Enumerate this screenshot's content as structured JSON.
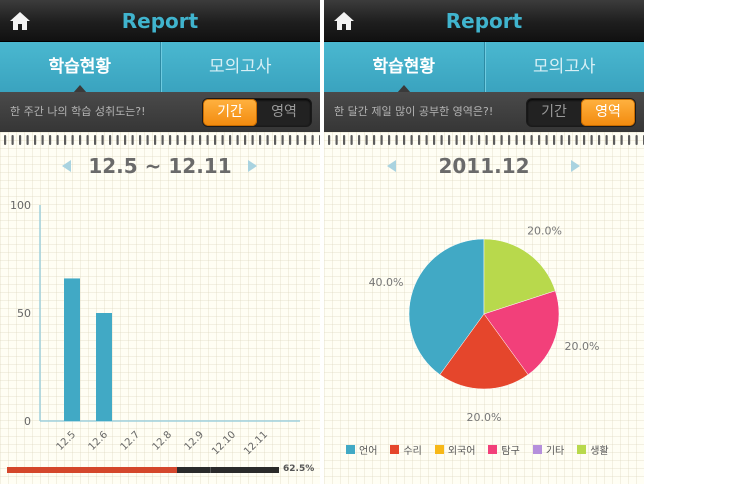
{
  "screens": [
    {
      "header": {
        "title": "Report"
      },
      "tabs": [
        {
          "label": "학습현황"
        },
        {
          "label": "모의고사"
        }
      ],
      "subbar": {
        "question": "한 주간 나의 학습 성취도는?!",
        "segments": [
          {
            "label": "기간"
          },
          {
            "label": "영역"
          }
        ],
        "selected": 0
      },
      "period": "12.5 ~ 12.11",
      "progress": {
        "label": "62.5%",
        "value": 0.625
      }
    },
    {
      "header": {
        "title": "Report"
      },
      "tabs": [
        {
          "label": "학습현황"
        },
        {
          "label": "모의고사"
        }
      ],
      "subbar": {
        "question": "한 달간 제일 많이 공부한 영역은?!",
        "segments": [
          {
            "label": "기간"
          },
          {
            "label": "영역"
          }
        ],
        "selected": 1
      },
      "period": "2011.12"
    }
  ],
  "colors": {
    "bar": "#41a9c5",
    "axis": "#9fd0dd",
    "accent_orange": "#f5941a"
  },
  "icons": {
    "home": "home-icon",
    "prev": "arrow-left-icon",
    "next": "arrow-right-icon"
  },
  "chart_data": [
    {
      "type": "bar",
      "categories": [
        "12.5",
        "12.6",
        "12.7",
        "12.8",
        "12.9",
        "12.10",
        "12.11"
      ],
      "values": [
        66,
        50,
        0,
        0,
        0,
        0,
        0
      ],
      "ylim": [
        0,
        100
      ],
      "yticks": [
        0,
        50,
        100
      ],
      "title": "",
      "xlabel": "",
      "ylabel": "",
      "grid": false
    },
    {
      "type": "pie",
      "labels": [
        "언어",
        "수리",
        "외국어",
        "탐구",
        "기타",
        "생활"
      ],
      "values": [
        40,
        20,
        0,
        20,
        0,
        20
      ],
      "value_labels": [
        "40.0%",
        "20.0%",
        "",
        "20.0%",
        "",
        "20.0%"
      ],
      "colors": [
        "#41a9c5",
        "#e5462c",
        "#f7b818",
        "#f2407a",
        "#b58fdc",
        "#b8d94c"
      ],
      "legend": "bottom"
    }
  ]
}
